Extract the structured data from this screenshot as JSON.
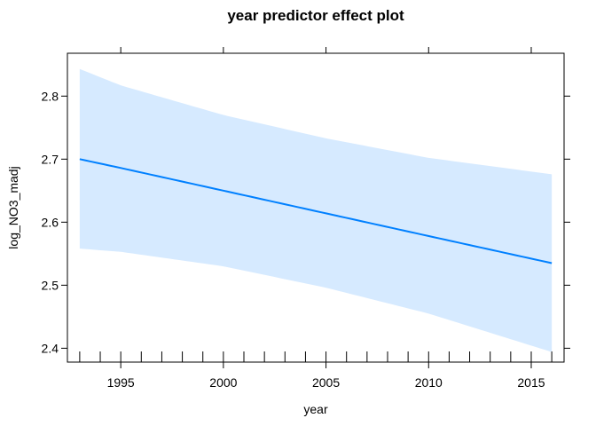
{
  "chart_data": {
    "type": "line",
    "title": "year predictor effect plot",
    "xlabel": "year",
    "ylabel": "log_NO3_madj",
    "xlim": [
      1992.4,
      2016.6
    ],
    "ylim": [
      2.378,
      2.868
    ],
    "x_ticks": [
      1995,
      2000,
      2005,
      2010,
      2015
    ],
    "y_ticks": [
      2.4,
      2.5,
      2.6,
      2.7,
      2.8
    ],
    "x_tick_labels": [
      "1995",
      "2000",
      "2005",
      "2010",
      "2015"
    ],
    "y_tick_labels": [
      "2.4",
      "2.5",
      "2.6",
      "2.7",
      "2.8"
    ],
    "x_rug": [
      1993,
      1994,
      1995,
      1996,
      1997,
      1998,
      1999,
      2000,
      2001,
      2002,
      2003,
      2004,
      2005,
      2006,
      2007,
      2008,
      2009,
      2010,
      2011,
      2012,
      2013,
      2014,
      2015,
      2016
    ],
    "grid": false,
    "series": [
      {
        "x": [
          1993,
          1995,
          2000,
          2005,
          2010,
          2016
        ],
        "fit": [
          2.7,
          2.686,
          2.65,
          2.614,
          2.578,
          2.535
        ],
        "lower": [
          2.558,
          2.553,
          2.53,
          2.496,
          2.455,
          2.394
        ],
        "upper": [
          2.843,
          2.817,
          2.77,
          2.733,
          2.702,
          2.676
        ]
      }
    ],
    "colors": {
      "line": "#0080ff",
      "band": "#d6eaff",
      "axis": "#000000"
    }
  }
}
